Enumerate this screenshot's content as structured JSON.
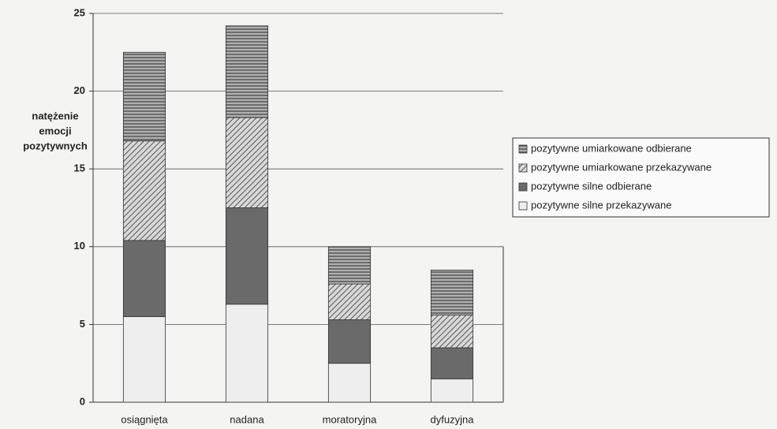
{
  "chart_data": {
    "type": "stacked-bar",
    "ylabel": [
      "natężenie",
      "emocji",
      "pozytywnych"
    ],
    "categories": [
      "osiągnięta",
      "nadana",
      "moratoryjna",
      "dyfuzyjna"
    ],
    "series": [
      {
        "name": "pozytywne silne przekazywane",
        "color": "#eeeeee",
        "hatch": "none",
        "values": [
          5.5,
          6.3,
          2.5,
          1.5
        ]
      },
      {
        "name": "pozytywne silne odbierane",
        "color": "#6a6a6a",
        "hatch": "none",
        "values": [
          4.9,
          6.2,
          2.8,
          2.0
        ]
      },
      {
        "name": "pozytywne umiarkowane przekazywane",
        "color": "#9a9a9a",
        "hatch": "diagonal",
        "values": [
          6.4,
          5.8,
          2.3,
          2.1
        ]
      },
      {
        "name": "pozytywne umiarkowane odbierane",
        "color": "#8a8a8a",
        "hatch": "horizontal",
        "values": [
          5.7,
          5.9,
          2.4,
          2.9
        ]
      }
    ],
    "ylim": [
      0,
      25
    ],
    "yticks": [
      0,
      5,
      10,
      15,
      20,
      25
    ],
    "grid": true,
    "legend": "right"
  }
}
